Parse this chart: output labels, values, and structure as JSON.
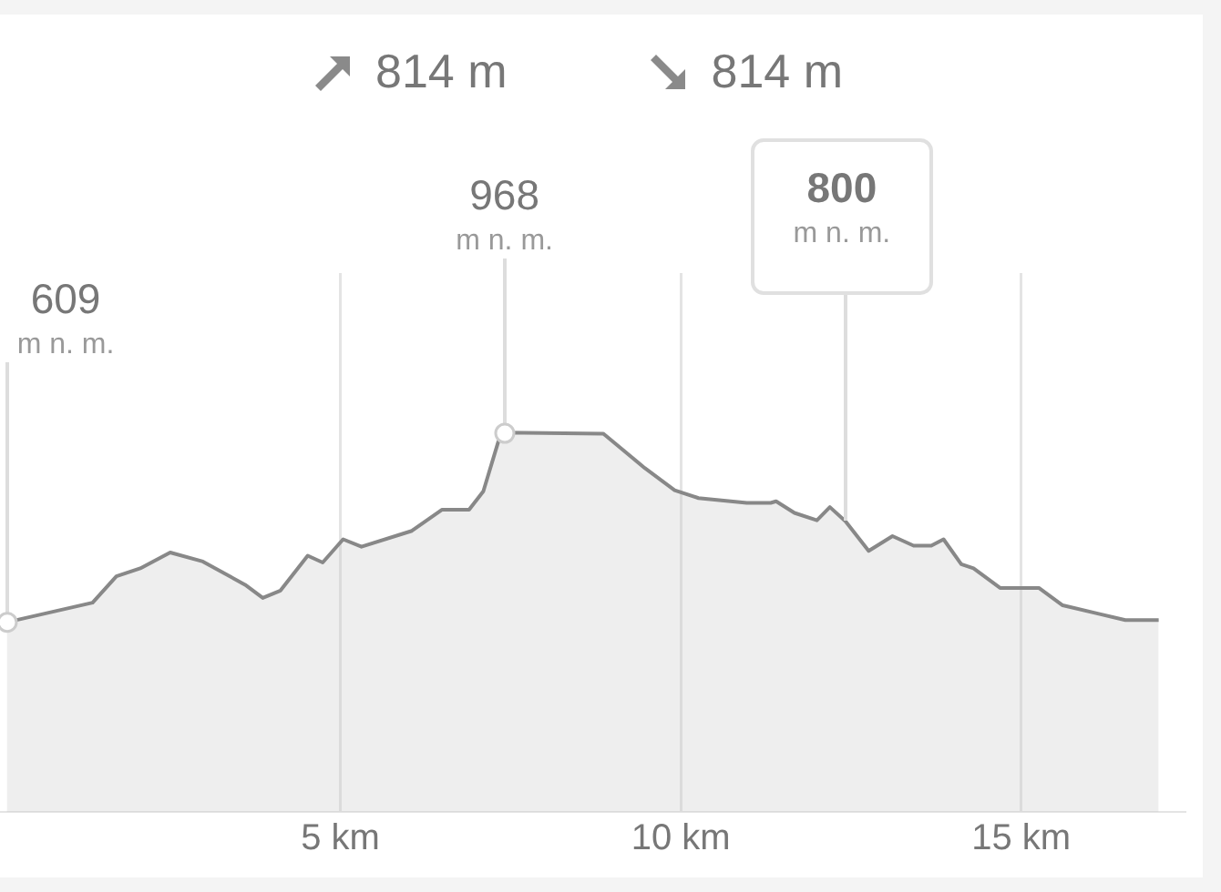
{
  "chart_data": {
    "type": "area",
    "x": [
      0.1,
      1.36,
      1.71,
      2.06,
      2.5,
      2.98,
      3.6,
      3.86,
      4.12,
      4.52,
      4.74,
      5.04,
      5.31,
      6.05,
      6.49,
      6.89,
      7.1,
      7.32,
      7.41,
      8.86,
      8.9,
      9.47,
      9.91,
      10.26,
      10.97,
      11.32,
      11.4,
      11.67,
      12.0,
      12.19,
      12.42,
      12.76,
      13.11,
      13.42,
      13.68,
      13.86,
      14.12,
      14.3,
      14.69,
      15.26,
      15.61,
      16.14,
      16.53,
      17.02
    ],
    "series": [
      {
        "color": "#888888",
        "values": [
          609,
          646,
          696,
          711,
          741,
          724,
          680,
          655,
          669,
          735,
          722,
          766,
          752,
          782,
          822,
          822,
          857,
          951,
          968,
          966,
          962,
          901,
          859,
          844,
          835,
          835,
          838,
          816,
          802,
          827,
          800,
          744,
          772,
          754,
          754,
          766,
          719,
          711,
          674,
          674,
          641,
          625,
          613,
          613
        ],
        "value_labels": [
          "609\nm n. m.",
          null,
          null,
          null,
          null,
          null,
          null,
          null,
          null,
          null,
          null,
          null,
          null,
          null,
          null,
          null,
          null,
          null,
          "968\nm n. m.",
          null,
          null,
          null,
          null,
          null,
          null,
          null,
          null,
          null,
          null,
          null,
          "800\nm n. m.",
          null,
          null,
          null,
          null,
          null,
          null,
          null,
          null,
          null,
          null,
          null,
          null,
          null
        ]
      }
    ],
    "xlim": [
      0,
      17.4
    ],
    "xticks": [
      {
        "value": 5,
        "label": "5 km"
      },
      {
        "value": 10,
        "label": "10 km"
      },
      {
        "value": 15,
        "label": "15 km"
      }
    ],
    "ylim": [
      250,
      1270
    ],
    "tick_labels": "x",
    "grid": "x",
    "legend": false,
    "marker": "none",
    "annotations": [
      "814 m",
      "814 m"
    ]
  }
}
